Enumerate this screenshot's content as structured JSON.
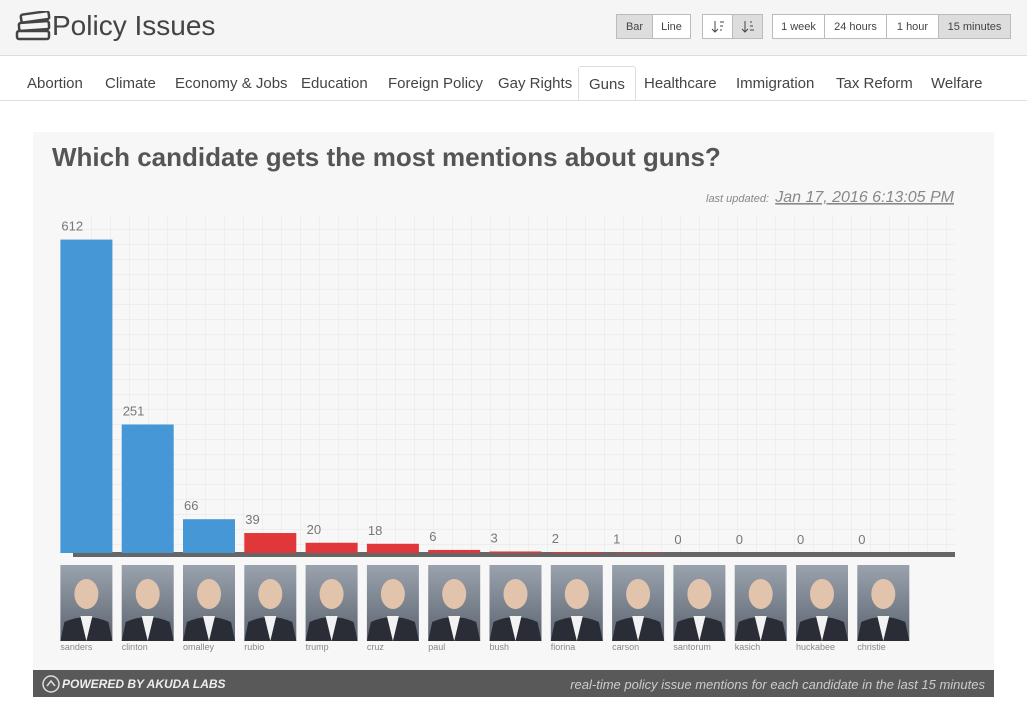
{
  "header": {
    "title": "Policy Issues",
    "view_buttons": [
      "Bar",
      "Line"
    ],
    "range_buttons": [
      "1 week",
      "24 hours",
      "1 hour",
      "15 minutes"
    ]
  },
  "tabs": [
    "Abortion",
    "Climate",
    "Economy & Jobs",
    "Education",
    "Foreign Policy",
    "Gay Rights",
    "Guns",
    "Healthcare",
    "Immigration",
    "Tax Reform",
    "Welfare"
  ],
  "chart_data": {
    "type": "bar",
    "title": "Which candidate gets the most mentions about guns?",
    "last_updated_label": "last updated:",
    "last_updated": "Jan 17, 2016 6:13:05 PM",
    "categories": [
      "sanders",
      "clinton",
      "omalley",
      "rubio",
      "trump",
      "cruz",
      "paul",
      "bush",
      "fiorina",
      "carson",
      "santorum",
      "kasich",
      "huckabee",
      "christie"
    ],
    "values": [
      612,
      251,
      66,
      39,
      20,
      18,
      6,
      3,
      2,
      1,
      0,
      0,
      0,
      0
    ],
    "colors": [
      "#4597d6",
      "#4597d6",
      "#4597d6",
      "#e0383a",
      "#e0383a",
      "#e0383a",
      "#e0383a",
      "#e0383a",
      "#e0383a",
      "#e0383a",
      "#e0383a",
      "#e0383a",
      "#e0383a",
      "#e0383a"
    ],
    "ylim": [
      0,
      660
    ]
  },
  "footer": {
    "powered_by": "POWERED BY AKUDA LABS",
    "caption": "real-time policy issue mentions for each candidate in the last 15 minutes"
  }
}
